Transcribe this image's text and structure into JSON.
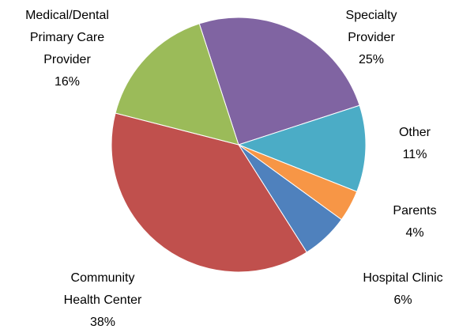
{
  "chart_data": {
    "type": "pie",
    "categories": [
      "Specialty Provider",
      "Other",
      "Parents",
      "Hospital Clinic",
      "Community Health Center",
      "Medical/Dental Primary Care Provider"
    ],
    "values": [
      25,
      11,
      4,
      6,
      38,
      16
    ],
    "value_labels": [
      "25%",
      "11%",
      "4%",
      "6%",
      "38%",
      "16%"
    ],
    "colors": [
      "#8064a2",
      "#4bacc6",
      "#f79646",
      "#4f81bd",
      "#c0504d",
      "#9bbb59"
    ]
  }
}
